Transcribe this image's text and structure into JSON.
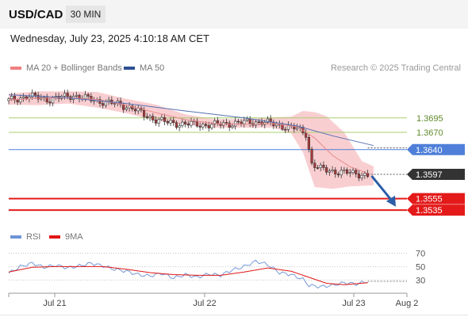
{
  "header": {
    "pair": "USD/CAD",
    "timeframe": "30 MIN"
  },
  "timestamp": "Wednesday, July 23, 2025 4:10:18 AM CET",
  "legend": {
    "bb_label": "MA 20 + Bollinger Bands",
    "ma50_label": "MA 50",
    "rsi_label": "RSI",
    "ma9_label": "9MA"
  },
  "credit": "Research © 2025 Trading Central",
  "colors": {
    "bb_band": "#f8c9cc",
    "ma20": "#e58a8a",
    "ma50": "#5670b4",
    "resistance": "#a9cf72",
    "pivot": "#4f7fd8",
    "support": "#e41a1a",
    "current": "#333333",
    "arrow": "#2b5ea8",
    "rsi": "#7399d6",
    "rsi_ma": "#e01515",
    "candle_up": "#ffffff",
    "candle_down": "#b03a3a"
  },
  "chart_data": {
    "type": "candlestick",
    "instrument": "USD/CAD",
    "interval": "30 MIN",
    "x_ticks": [
      "Jul 21",
      "Jul 22",
      "Jul 23",
      "Aug 2"
    ],
    "y_range": [
      1.3505,
      1.3762
    ],
    "levels": [
      {
        "label": "1.3695",
        "value": 1.3695,
        "kind": "resistance"
      },
      {
        "label": "1.3670",
        "value": 1.367,
        "kind": "resistance"
      },
      {
        "label": "1.3640",
        "value": 1.364,
        "kind": "pivot"
      },
      {
        "label": "1.3597",
        "value": 1.3597,
        "kind": "last-price"
      },
      {
        "label": "1.3555",
        "value": 1.3555,
        "kind": "support"
      },
      {
        "label": "1.3535",
        "value": 1.3535,
        "kind": "support"
      }
    ],
    "price_path": [
      [
        0,
        1.3725
      ],
      [
        3,
        1.3728
      ],
      [
        6,
        1.3733
      ],
      [
        10,
        1.373
      ],
      [
        14,
        1.3727
      ],
      [
        18,
        1.3731
      ],
      [
        22,
        1.3734
      ],
      [
        26,
        1.3729
      ],
      [
        30,
        1.3725
      ],
      [
        34,
        1.3721
      ],
      [
        38,
        1.3718
      ],
      [
        42,
        1.3712
      ],
      [
        46,
        1.37
      ],
      [
        50,
        1.3692
      ],
      [
        54,
        1.3687
      ],
      [
        58,
        1.3685
      ],
      [
        62,
        1.3684
      ],
      [
        66,
        1.3683
      ],
      [
        70,
        1.3683
      ],
      [
        74,
        1.3685
      ],
      [
        78,
        1.3686
      ],
      [
        82,
        1.3688
      ],
      [
        86,
        1.3688
      ],
      [
        90,
        1.3684
      ],
      [
        94,
        1.368
      ],
      [
        98,
        1.3676
      ],
      [
        101,
        1.3668
      ],
      [
        103,
        1.3615
      ],
      [
        106,
        1.3606
      ],
      [
        110,
        1.3603
      ],
      [
        114,
        1.36
      ],
      [
        118,
        1.3599
      ],
      [
        122,
        1.3595
      ]
    ],
    "ma20_path": [
      [
        0,
        1.3726
      ],
      [
        10,
        1.3729
      ],
      [
        20,
        1.373
      ],
      [
        30,
        1.3727
      ],
      [
        40,
        1.3717
      ],
      [
        50,
        1.3704
      ],
      [
        60,
        1.3692
      ],
      [
        70,
        1.3685
      ],
      [
        80,
        1.3684
      ],
      [
        90,
        1.3685
      ],
      [
        98,
        1.368
      ],
      [
        104,
        1.366
      ],
      [
        110,
        1.363
      ],
      [
        116,
        1.361
      ],
      [
        122,
        1.3599
      ]
    ],
    "ma50_path": [
      [
        0,
        1.3735
      ],
      [
        20,
        1.373
      ],
      [
        40,
        1.372
      ],
      [
        60,
        1.3707
      ],
      [
        80,
        1.3695
      ],
      [
        98,
        1.3681
      ],
      [
        110,
        1.3664
      ],
      [
        124,
        1.3647
      ]
    ],
    "bb_upper": [
      [
        0,
        1.3737
      ],
      [
        10,
        1.3741
      ],
      [
        20,
        1.3741
      ],
      [
        30,
        1.374
      ],
      [
        40,
        1.3728
      ],
      [
        50,
        1.3718
      ],
      [
        60,
        1.3701
      ],
      [
        70,
        1.3693
      ],
      [
        80,
        1.3693
      ],
      [
        90,
        1.3696
      ],
      [
        96,
        1.3697
      ],
      [
        100,
        1.3707
      ],
      [
        104,
        1.3705
      ],
      [
        108,
        1.3698
      ],
      [
        114,
        1.367
      ],
      [
        120,
        1.362
      ],
      [
        124,
        1.3611
      ]
    ],
    "bb_lower": [
      [
        0,
        1.3718
      ],
      [
        10,
        1.3717
      ],
      [
        20,
        1.372
      ],
      [
        30,
        1.3713
      ],
      [
        40,
        1.3703
      ],
      [
        50,
        1.369
      ],
      [
        60,
        1.3683
      ],
      [
        70,
        1.3678
      ],
      [
        80,
        1.3678
      ],
      [
        90,
        1.3678
      ],
      [
        96,
        1.3668
      ],
      [
        100,
        1.3635
      ],
      [
        104,
        1.3575
      ],
      [
        110,
        1.3572
      ],
      [
        116,
        1.3576
      ],
      [
        124,
        1.3578
      ]
    ],
    "projection": {
      "from": [
        122,
        1.3597
      ],
      "to": [
        131,
        1.3545
      ]
    },
    "rsi": {
      "levels": [
        70,
        50,
        30
      ],
      "y_range": [
        15,
        80
      ],
      "rsi_path": [
        [
          0,
          40
        ],
        [
          4,
          50
        ],
        [
          8,
          55
        ],
        [
          12,
          49
        ],
        [
          16,
          52
        ],
        [
          20,
          48
        ],
        [
          24,
          51
        ],
        [
          28,
          55
        ],
        [
          32,
          51
        ],
        [
          36,
          46
        ],
        [
          40,
          43
        ],
        [
          44,
          38
        ],
        [
          48,
          36
        ],
        [
          52,
          40
        ],
        [
          56,
          33
        ],
        [
          60,
          38
        ],
        [
          64,
          34
        ],
        [
          68,
          39
        ],
        [
          72,
          37
        ],
        [
          76,
          45
        ],
        [
          80,
          50
        ],
        [
          84,
          58
        ],
        [
          88,
          53
        ],
        [
          92,
          41
        ],
        [
          96,
          38
        ],
        [
          100,
          31
        ],
        [
          102,
          22
        ],
        [
          106,
          20
        ],
        [
          110,
          22
        ],
        [
          114,
          26
        ],
        [
          118,
          24
        ],
        [
          122,
          28
        ]
      ],
      "ma9_path": [
        [
          0,
          42
        ],
        [
          8,
          49
        ],
        [
          16,
          50
        ],
        [
          24,
          50
        ],
        [
          32,
          50
        ],
        [
          40,
          46
        ],
        [
          48,
          41
        ],
        [
          56,
          38
        ],
        [
          64,
          37
        ],
        [
          72,
          37
        ],
        [
          80,
          42
        ],
        [
          88,
          48
        ],
        [
          96,
          43
        ],
        [
          102,
          34
        ],
        [
          108,
          25
        ],
        [
          114,
          23
        ],
        [
          122,
          26
        ]
      ]
    }
  }
}
